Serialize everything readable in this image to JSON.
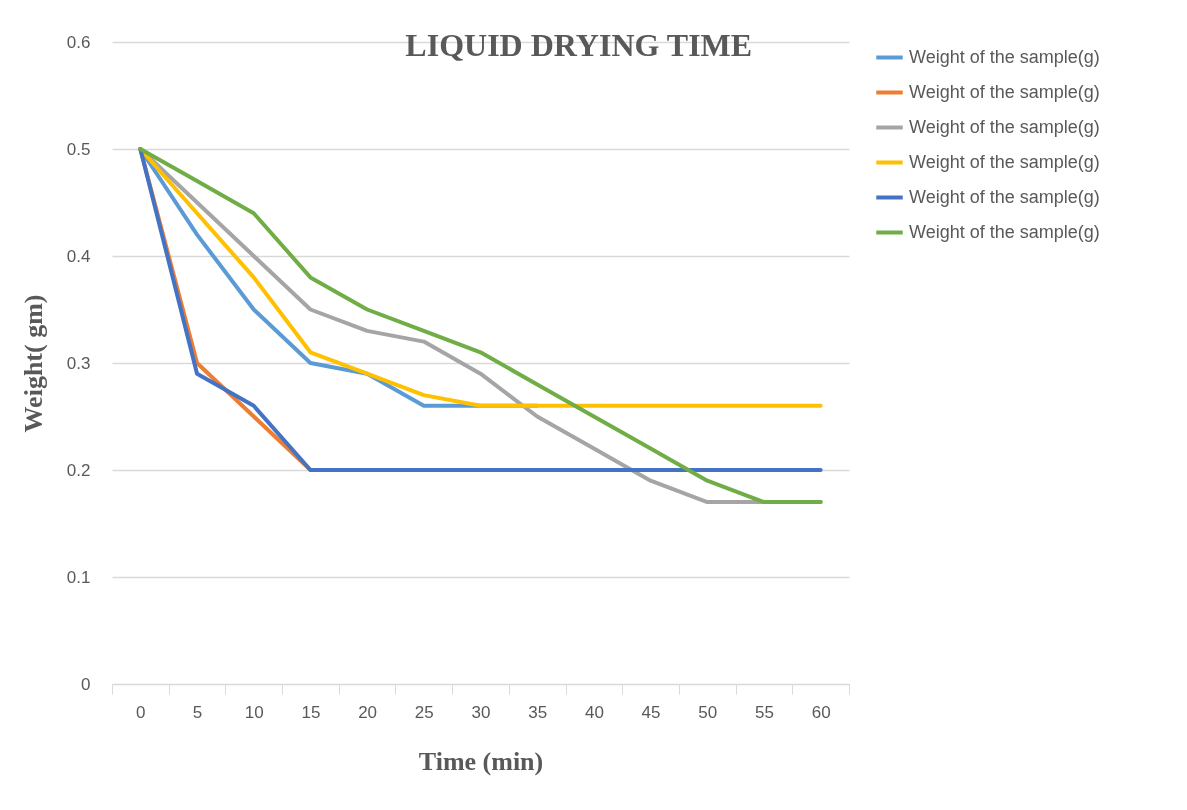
{
  "chart_data": {
    "type": "line",
    "title": "LIQUID DRYING TIME",
    "xlabel": "Time (min)",
    "ylabel": "Weight( gm)",
    "categories": [
      "0",
      "5",
      "10",
      "15",
      "20",
      "25",
      "30",
      "35",
      "40",
      "45",
      "50",
      "55",
      "60"
    ],
    "ylim": [
      0,
      0.6
    ],
    "yticks": [
      {
        "value": 0,
        "label": "0"
      },
      0.1,
      0.2,
      0.3,
      0.4,
      0.5,
      0.6
    ],
    "grid": "y",
    "legend": "right",
    "marker": "none",
    "line_style": "solid",
    "series": [
      {
        "name": "Weight of the sample(g)",
        "color": "#5b9bd5",
        "values": [
          0.5,
          0.42,
          0.35,
          0.3,
          0.29,
          0.26,
          0.26,
          0.26,
          null,
          null,
          null,
          null,
          null
        ]
      },
      {
        "name": "Weight of the sample(g)",
        "color": "#ed7d31",
        "values": [
          0.5,
          0.3,
          0.25,
          0.2,
          null,
          null,
          null,
          null,
          null,
          null,
          null,
          null,
          null
        ]
      },
      {
        "name": "Weight of the sample(g)",
        "color": "#a5a5a5",
        "values": [
          0.5,
          0.45,
          0.4,
          0.35,
          0.33,
          0.32,
          0.29,
          0.25,
          0.22,
          0.19,
          0.17,
          0.17,
          0.17
        ]
      },
      {
        "name": "Weight of the sample(g)",
        "color": "#ffc000",
        "values": [
          0.5,
          0.44,
          0.38,
          0.31,
          0.29,
          0.27,
          0.26,
          0.26,
          0.26,
          0.26,
          0.26,
          0.26,
          0.26
        ]
      },
      {
        "name": "Weight of the sample(g)",
        "color": "#4472c4",
        "values": [
          0.5,
          0.29,
          0.26,
          0.2,
          0.2,
          0.2,
          0.2,
          0.2,
          0.2,
          0.2,
          0.2,
          0.2,
          0.2
        ]
      },
      {
        "name": "Weight of the sample(g)",
        "color": "#70ad47",
        "values": [
          0.5,
          0.47,
          0.44,
          0.38,
          0.35,
          0.33,
          0.31,
          0.28,
          0.25,
          0.22,
          0.19,
          0.17,
          0.17
        ]
      }
    ]
  }
}
